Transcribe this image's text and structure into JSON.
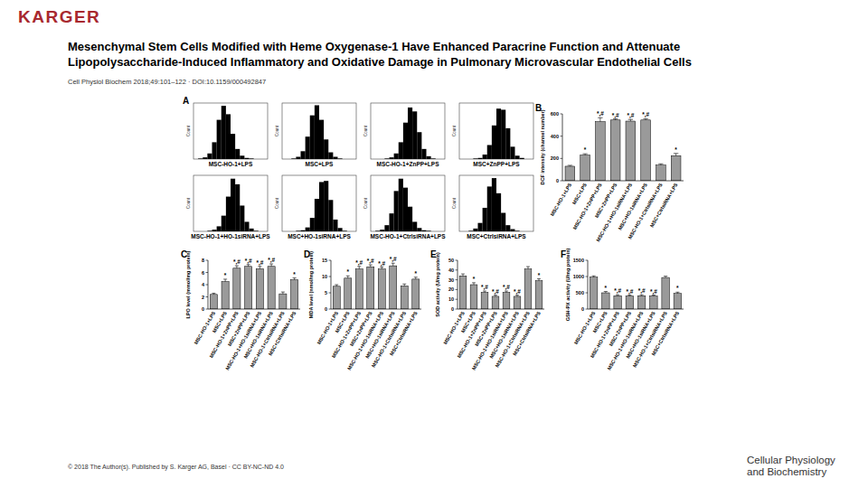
{
  "header": {
    "logo": "KARGER",
    "title": [
      "Mesenchymal Stem Cells Modified with Heme Oxygenase-1 Have Enhanced Paracrine Function and Attenuate",
      "Lipopolysaccharide-Induced Inflammatory and Oxidative Damage in Pulmonary Microvascular Endothelial Cells"
    ],
    "citation": "Cell Physiol Biochem 2018;49:101–122 · DOI:10.1159/000492847"
  },
  "footer": {
    "copyright": "© 2018 The Author(s). Published by S. Karger AG, Basel · CC BY-NC-ND 4.0",
    "journal": [
      "Cellular Physiology",
      "and Biochemistry"
    ]
  },
  "chart_data": [
    {
      "type": "histogram",
      "panel": "A",
      "title": "MSC-HO-1+LPS",
      "ylabel": "Count",
      "xlim": [
        0,
        1024
      ],
      "ylim": [
        0,
        100
      ],
      "tick_labels": false,
      "color": "#000000",
      "bins": [
        0,
        64,
        128,
        192,
        256,
        320,
        384,
        448,
        512,
        576,
        640,
        704,
        768,
        832,
        896,
        960,
        1024
      ],
      "counts": [
        0,
        1,
        3,
        10,
        30,
        70,
        95,
        80,
        45,
        18,
        6,
        2,
        1,
        0,
        0,
        0
      ]
    },
    {
      "type": "histogram",
      "title": "MSC+LPS",
      "ylabel": "Count",
      "xlim": [
        0,
        1024
      ],
      "ylim": [
        0,
        100
      ],
      "tick_labels": false,
      "color": "#000000",
      "bins": [
        0,
        64,
        128,
        192,
        256,
        320,
        384,
        448,
        512,
        576,
        640,
        704,
        768,
        832,
        896,
        960,
        1024
      ],
      "counts": [
        0,
        0,
        1,
        4,
        14,
        40,
        78,
        96,
        70,
        35,
        12,
        4,
        1,
        0,
        0,
        0
      ]
    },
    {
      "type": "histogram",
      "title": "MSC-HO-1+ZnPP+LPS",
      "ylabel": "Count",
      "xlim": [
        0,
        1024
      ],
      "ylim": [
        0,
        100
      ],
      "tick_labels": false,
      "color": "#000000",
      "bins": [
        0,
        64,
        128,
        192,
        256,
        320,
        384,
        448,
        512,
        576,
        640,
        704,
        768,
        832,
        896,
        960,
        1024
      ],
      "counts": [
        0,
        0,
        0,
        1,
        3,
        10,
        30,
        65,
        92,
        85,
        48,
        18,
        5,
        1,
        0,
        0
      ]
    },
    {
      "type": "histogram",
      "title": "MSC+ZnPP+LPS",
      "ylabel": "Count",
      "xlim": [
        0,
        1024
      ],
      "ylim": [
        0,
        100
      ],
      "tick_labels": false,
      "color": "#000000",
      "bins": [
        0,
        64,
        128,
        192,
        256,
        320,
        384,
        448,
        512,
        576,
        640,
        704,
        768,
        832,
        896,
        960,
        1024
      ],
      "counts": [
        0,
        0,
        0,
        1,
        2,
        8,
        25,
        60,
        90,
        88,
        55,
        22,
        6,
        2,
        0,
        0
      ]
    },
    {
      "type": "histogram",
      "title": "MSC-HO-1+HO-1siRNA+LPS",
      "ylabel": "Count",
      "xlim": [
        0,
        1024
      ],
      "ylim": [
        0,
        100
      ],
      "tick_labels": false,
      "color": "#000000",
      "bins": [
        0,
        64,
        128,
        192,
        256,
        320,
        384,
        448,
        512,
        576,
        640,
        704,
        768,
        832,
        896,
        960,
        1024
      ],
      "counts": [
        0,
        0,
        0,
        1,
        3,
        9,
        28,
        62,
        94,
        84,
        46,
        17,
        5,
        1,
        0,
        0
      ]
    },
    {
      "type": "histogram",
      "title": "MSC+HO-1siRNA+LPS",
      "ylabel": "Count",
      "xlim": [
        0,
        1024
      ],
      "ylim": [
        0,
        100
      ],
      "tick_labels": false,
      "color": "#000000",
      "bins": [
        0,
        64,
        128,
        192,
        256,
        320,
        384,
        448,
        512,
        576,
        640,
        704,
        768,
        832,
        896,
        960,
        1024
      ],
      "counts": [
        0,
        0,
        0,
        1,
        2,
        7,
        24,
        58,
        88,
        90,
        56,
        21,
        6,
        1,
        0,
        0
      ]
    },
    {
      "type": "histogram",
      "title": "MSC-HO-1+CtrlsiRNA+LPS",
      "ylabel": "Count",
      "xlim": [
        0,
        1024
      ],
      "ylim": [
        0,
        100
      ],
      "tick_labels": false,
      "color": "#000000",
      "bins": [
        0,
        64,
        128,
        192,
        256,
        320,
        384,
        448,
        512,
        576,
        640,
        704,
        768,
        832,
        896,
        960,
        1024
      ],
      "counts": [
        0,
        1,
        3,
        11,
        32,
        72,
        94,
        78,
        44,
        17,
        6,
        2,
        1,
        0,
        0,
        0
      ]
    },
    {
      "type": "histogram",
      "title": "MSC+CtrlsiRNA+LPS",
      "ylabel": "Count",
      "xlim": [
        0,
        1024
      ],
      "ylim": [
        0,
        100
      ],
      "tick_labels": false,
      "color": "#000000",
      "bins": [
        0,
        64,
        128,
        192,
        256,
        320,
        384,
        448,
        512,
        576,
        640,
        704,
        768,
        832,
        896,
        960,
        1024
      ],
      "counts": [
        0,
        0,
        1,
        5,
        15,
        42,
        80,
        95,
        68,
        33,
        11,
        4,
        1,
        0,
        0,
        0
      ]
    },
    {
      "type": "bar",
      "panel": "B",
      "ylabel": "DCF intensity (channel number)",
      "categories": [
        "MSC-HO-1+LPS",
        "MSC+LPS",
        "MSC-HO-1+ZnPP+LPS",
        "MSC+ZnPP+LPS",
        "MSC-HO-1+HO-1siRNA+LPS",
        "MSC+HO-1siRNA+LPS",
        "MSC-HO-1+CtrlsiRNA+LPS",
        "MSC+CtrlsiRNA+LPS"
      ],
      "values": [
        130,
        230,
        530,
        545,
        535,
        545,
        140,
        225
      ],
      "errors": [
        8,
        12,
        35,
        10,
        15,
        12,
        12,
        20
      ],
      "significance": [
        null,
        "*",
        "*,#",
        "*,#",
        "*,#",
        "*,#",
        null,
        "*"
      ],
      "color": "#9a9a9a",
      "ylim": [
        0,
        600
      ],
      "yticks": [
        0,
        200,
        400,
        600
      ]
    },
    {
      "type": "bar",
      "panel": "C",
      "ylabel": "LPO level (mmol/mg protein)",
      "categories": [
        "MSC-HO-1+LPS",
        "MSC+LPS",
        "MSC-HO-1+ZnPP+LPS",
        "MSC+ZnPP+LPS",
        "MSC-HO-1+HO-1siRNA+LPS",
        "MSC+HO-1siRNA+LPS",
        "MSC-HO-1+CtrlsiRNA+LPS",
        "MSC+CtrlsiRNA+LPS"
      ],
      "values": [
        2.4,
        4.5,
        6.7,
        7.0,
        6.6,
        7.0,
        2.5,
        4.8
      ],
      "errors": [
        0.2,
        0.4,
        0.4,
        0.3,
        0.4,
        0.4,
        0.3,
        0.3
      ],
      "significance": [
        null,
        "*",
        "*,#",
        "*,#",
        "*,#",
        "*,#",
        null,
        "*"
      ],
      "color": "#9a9a9a",
      "ylim": [
        0,
        8
      ],
      "yticks": [
        0,
        2,
        4,
        6,
        8
      ]
    },
    {
      "type": "bar",
      "panel": "D",
      "ylabel": "MDA level (nmol/mg protein)",
      "categories": [
        "MSC-HO-1+LPS",
        "MSC+LPS",
        "MSC-HO-1+ZnPP+LPS",
        "MSC+ZnPP+LPS",
        "MSC-HO-1+HO-1siRNA+LPS",
        "MSC+HO-1siRNA+LPS",
        "MSC-HO-1+CtrlsiRNA+LPS",
        "MSC+CtrlsiRNA+LPS"
      ],
      "values": [
        7.0,
        9.5,
        12.3,
        13.0,
        12.3,
        13.3,
        7.1,
        9.2
      ],
      "errors": [
        0.5,
        0.7,
        0.8,
        0.6,
        0.6,
        0.8,
        0.6,
        0.6
      ],
      "significance": [
        null,
        "*",
        "*,#",
        "*,#",
        "*,#",
        "*,#",
        null,
        "*"
      ],
      "color": "#9a9a9a",
      "ylim": [
        0,
        15
      ],
      "yticks": [
        0,
        5,
        10,
        15
      ]
    },
    {
      "type": "bar",
      "panel": "E",
      "ylabel": "SOD activity (U/mg protein)",
      "categories": [
        "MSC-HO-1+LPS",
        "MSC+LPS",
        "MSC-HO-1+ZnPP+LPS",
        "MSC+ZnPP+LPS",
        "MSC-HO-1+HO-1siRNA+LPS",
        "MSC+HO-1siRNA+LPS",
        "MSC-HO-1+CtrlsiRNA+LPS",
        "MSC+CtrlsiRNA+LPS"
      ],
      "values": [
        34,
        25,
        17,
        13,
        17,
        13,
        41,
        29
      ],
      "errors": [
        2,
        2,
        1.5,
        1.2,
        1.5,
        1.2,
        2.5,
        2
      ],
      "significance": [
        null,
        "*",
        "*,#",
        "*,#",
        "*,#",
        "*,#",
        null,
        "*"
      ],
      "color": "#9a9a9a",
      "ylim": [
        0,
        50
      ],
      "yticks": [
        0,
        10,
        20,
        30,
        40,
        50
      ]
    },
    {
      "type": "bar",
      "panel": "F",
      "ylabel": "GSH-PX activity (U/mg protein)",
      "categories": [
        "MSC-HO-1+LPS",
        "MSC+LPS",
        "MSC-HO-1+ZnPP+LPS",
        "MSC+ZnPP+LPS",
        "MSC-HO-1+HO-1siRNA+LPS",
        "MSC+HO-1siRNA+LPS",
        "MSC-HO-1+CtrlsiRNA+LPS",
        "MSC+CtrlsiRNA+LPS"
      ],
      "values": [
        980,
        500,
        410,
        400,
        410,
        400,
        970,
        480
      ],
      "errors": [
        40,
        40,
        30,
        30,
        30,
        30,
        40,
        40
      ],
      "significance": [
        null,
        "*",
        "*,#",
        "*,#",
        "*,#",
        "*,#",
        null,
        "*"
      ],
      "color": "#9a9a9a",
      "ylim": [
        0,
        1500
      ],
      "yticks": [
        0,
        500,
        1000,
        1500
      ]
    }
  ]
}
